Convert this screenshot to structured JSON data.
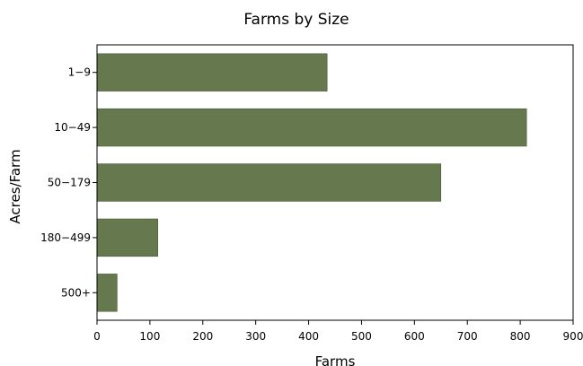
{
  "chart_data": {
    "type": "bar",
    "orientation": "horizontal",
    "title": "Farms by Size",
    "xlabel": "Farms",
    "ylabel": "Acres/Farm",
    "categories": [
      "1-9",
      "10-49",
      "50-179",
      "180-499",
      "500+"
    ],
    "category_labels": [
      "1−9",
      "10−49",
      "50−179",
      "180−499",
      "500+"
    ],
    "values": [
      435,
      812,
      650,
      115,
      38
    ],
    "xlim": [
      0,
      900
    ],
    "xticks": [
      0,
      100,
      200,
      300,
      400,
      500,
      600,
      700,
      800,
      900
    ],
    "grid": false,
    "bar_color": "#65784e"
  }
}
